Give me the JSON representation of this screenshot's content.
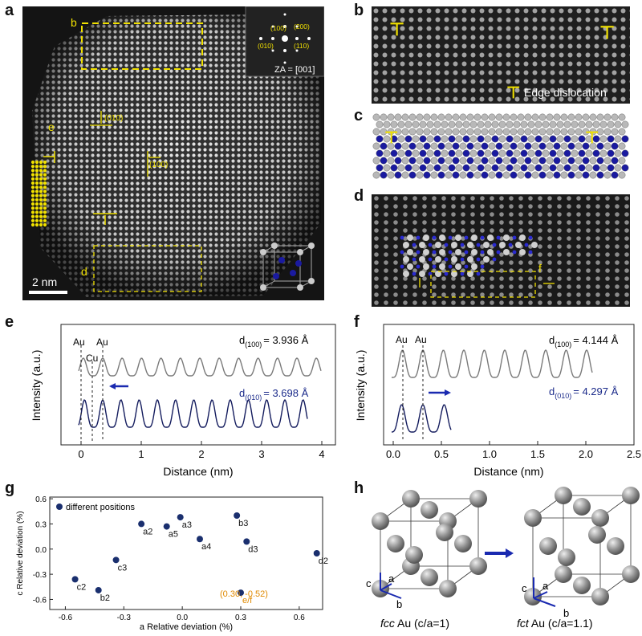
{
  "panel_letters": {
    "a": "a",
    "b": "b",
    "c": "c",
    "d": "d",
    "e": "e",
    "f": "f",
    "g": "g",
    "h": "h"
  },
  "panel_a": {
    "box_labels": {
      "b": "b",
      "d": "d",
      "e": "e"
    },
    "fft_labels": {
      "l100": "(100)",
      "l200": "(200)",
      "l010": "(010)",
      "l110": "(110)"
    },
    "zone_axis": "ZA = [001]",
    "plane_010": "(010)",
    "plane_100": "(100)",
    "scale_bar": "2 nm",
    "colors": {
      "highlight": "#f0e000",
      "atom_blue": "#1a1aa0",
      "atom_gray": "#b8b8b8"
    }
  },
  "panel_b": {
    "legend": "Edge dislocation",
    "symbol": "⊤"
  },
  "panel_d": {
    "label_f": "f"
  },
  "panel_e": {
    "ylabel": "Intensity (a.u.)",
    "xlabel": "Distance (nm)",
    "xticks": [
      "0",
      "1",
      "2",
      "3",
      "4"
    ],
    "au1": "Au",
    "au2": "Au",
    "cu": "Cu",
    "d100_main": "d",
    "d100_sub": "(100)",
    "d100_val": "= 3.936 Å",
    "d010_main": "d",
    "d010_sub": "(010)",
    "d010_val": "= 3.698 Å"
  },
  "panel_f": {
    "ylabel": "Intensity (a.u.)",
    "xlabel": "Distance (nm)",
    "xticks": [
      "0.0",
      "0.5",
      "1.0",
      "1.5",
      "2.0",
      "2.5"
    ],
    "au1": "Au",
    "au2": "Au",
    "d100_main": "d",
    "d100_sub": "(100)",
    "d100_val": "= 4.144 Å",
    "d010_main": "d",
    "d010_sub": "(010)",
    "d010_val": "= 4.297 Å"
  },
  "chart_data": {
    "type": "scatter",
    "xlabel": "a Relative deviation (%)",
    "ylabel": "c Relative deviation (%)",
    "xlim": [
      -0.68,
      0.72
    ],
    "ylim": [
      -0.72,
      0.62
    ],
    "xticks": [
      "-0.6",
      "-0.3",
      "0.0",
      "0.3",
      "0.6"
    ],
    "yticks": [
      "-0.6",
      "-0.3",
      "0.0",
      "0.3",
      "0.6"
    ],
    "legend": "different positions",
    "legend_position": "top-left",
    "marker_color": "#1a2f6e",
    "annotation_color": "#e08a00",
    "annotation": "(0.30, -0.52)",
    "points": [
      {
        "label": "a2",
        "x": -0.21,
        "y": 0.3
      },
      {
        "label": "a5",
        "x": -0.08,
        "y": 0.27
      },
      {
        "label": "a3",
        "x": -0.01,
        "y": 0.38
      },
      {
        "label": "a4",
        "x": 0.09,
        "y": 0.12
      },
      {
        "label": "b3",
        "x": 0.28,
        "y": 0.4
      },
      {
        "label": "d3",
        "x": 0.33,
        "y": 0.09
      },
      {
        "label": "d2",
        "x": 0.69,
        "y": -0.05
      },
      {
        "label": "c3",
        "x": -0.34,
        "y": -0.13
      },
      {
        "label": "c2",
        "x": -0.55,
        "y": -0.36
      },
      {
        "label": "b2",
        "x": -0.43,
        "y": -0.49
      },
      {
        "label": "e/f",
        "x": 0.3,
        "y": -0.52
      }
    ]
  },
  "panel_h": {
    "left_caption_italic": "fcc",
    "left_caption_rest": " Au (c/a=1)",
    "right_caption_italic": "fct",
    "right_caption_rest": " Au (c/a=1.1)",
    "axis_c": "c",
    "axis_a": "a",
    "axis_b": "b"
  }
}
